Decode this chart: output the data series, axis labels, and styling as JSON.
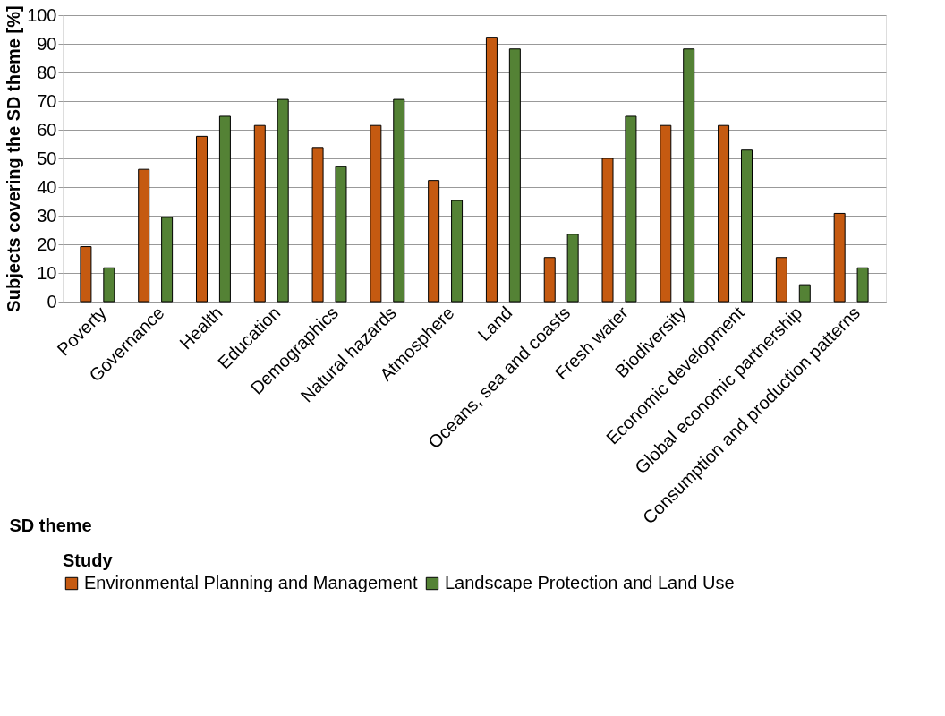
{
  "chart_data": {
    "type": "bar",
    "xlabel": "SD theme",
    "ylabel": "Subjects covering the SD theme [%]",
    "legend_title": "Study",
    "categories": [
      "Poverty",
      "Governance",
      "Health",
      "Education",
      "Demographics",
      "Natural hazards",
      "Atmosphere",
      "Land",
      "Oceans, sea and coasts",
      "Fresh water",
      "Biodiversity",
      "Economic development",
      "Global economic partnership",
      "Consumption and production patterns"
    ],
    "series": [
      {
        "name": "Environmental Planning and Management",
        "color": "#c55a11",
        "values": [
          19.2,
          46.2,
          57.7,
          61.5,
          53.8,
          61.5,
          42.3,
          92.3,
          15.4,
          50.0,
          61.5,
          61.5,
          15.4,
          30.8
        ]
      },
      {
        "name": "Landscape Protection and Land Use",
        "color": "#548235",
        "values": [
          11.8,
          29.4,
          64.7,
          70.6,
          47.1,
          70.6,
          35.3,
          88.2,
          23.5,
          64.7,
          88.2,
          52.9,
          5.9,
          11.8
        ]
      }
    ],
    "ylim": [
      0,
      100
    ],
    "yticks": [
      0,
      10,
      20,
      30,
      40,
      50,
      60,
      70,
      80,
      90,
      100
    ],
    "grid": "y",
    "legend": "bottom"
  }
}
